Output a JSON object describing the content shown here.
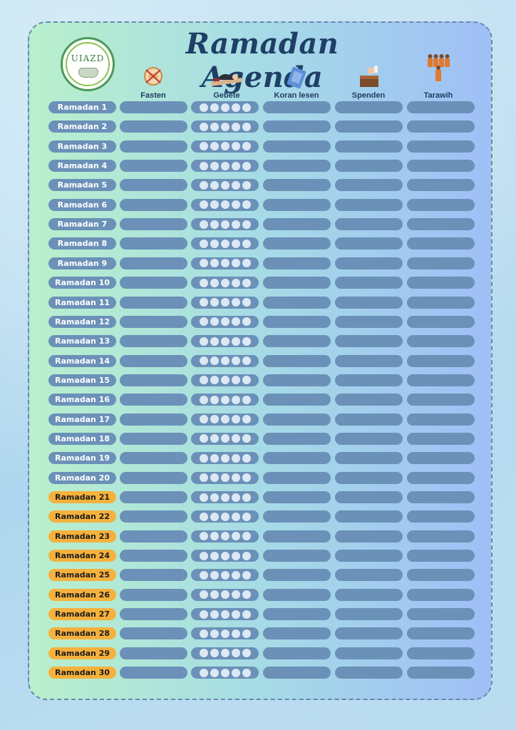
{
  "header": {
    "title": "Ramadan Agenda",
    "logo_text": "UIAZD"
  },
  "columns": [
    {
      "label": "Fasten",
      "icon": "no-food-icon"
    },
    {
      "label": "Gebete",
      "icon": "prayer-icon"
    },
    {
      "label": "Koran lesen",
      "icon": "quran-book-icon"
    },
    {
      "label": "Spenden",
      "icon": "donation-box-icon"
    },
    {
      "label": "Tarawih",
      "icon": "people-praying-icon"
    }
  ],
  "prayers_per_day": 5,
  "days": [
    "Ramadan 1",
    "Ramadan 2",
    "Ramadan 3",
    "Ramadan 4",
    "Ramadan 5",
    "Ramadan 6",
    "Ramadan 7",
    "Ramadan 8",
    "Ramadan 9",
    "Ramadan 10",
    "Ramadan 11",
    "Ramadan 12",
    "Ramadan 13",
    "Ramadan 14",
    "Ramadan 15",
    "Ramadan 16",
    "Ramadan 17",
    "Ramadan 18",
    "Ramadan 19",
    "Ramadan 20",
    "Ramadan 21",
    "Ramadan 22",
    "Ramadan 23",
    "Ramadan 24",
    "Ramadan 25",
    "Ramadan 26",
    "Ramadan 27",
    "Ramadan 28",
    "Ramadan 29",
    "Ramadan 30"
  ],
  "highlight_from_day": 21,
  "colors": {
    "label_pill": "#6b91b8",
    "label_pill_highlight": "#f6b13d",
    "title": "#1f3f66"
  }
}
